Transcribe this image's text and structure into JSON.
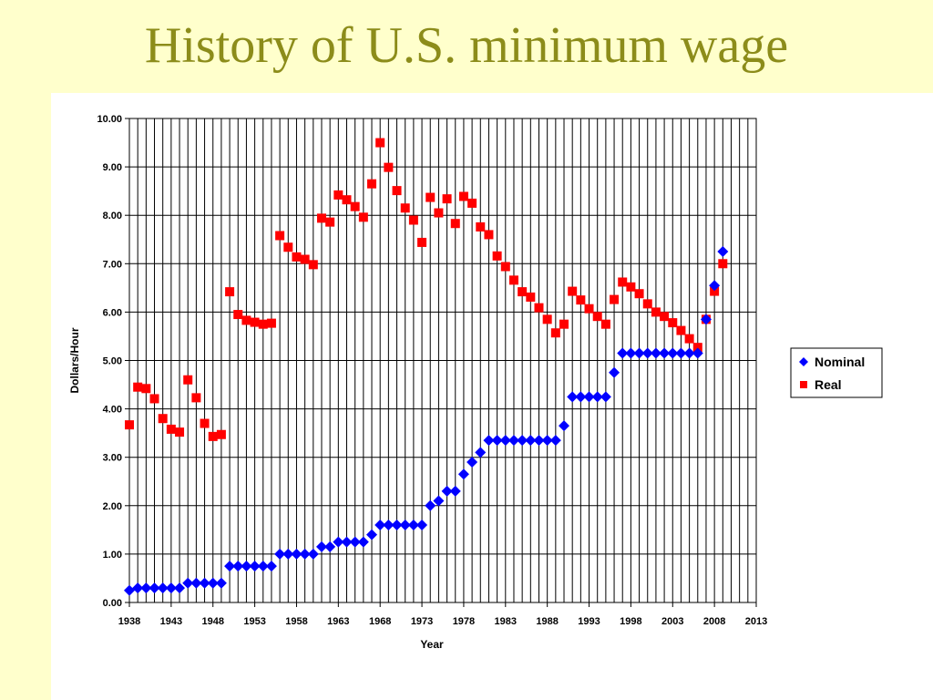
{
  "slide": {
    "title": "History of U.S. minimum wage"
  },
  "colors": {
    "background": "#ffffcc",
    "title": "#8c8c1a",
    "nominal": "#0000ff",
    "real": "#ff0000",
    "grid": "#000000"
  },
  "chart_data": {
    "type": "scatter",
    "title": "",
    "xlabel": "Year",
    "ylabel": "Dollars/Hour",
    "xlim": [
      1938,
      2013
    ],
    "ylim": [
      0,
      10
    ],
    "x_ticks": [
      "1938",
      "1943",
      "1948",
      "1953",
      "1958",
      "1963",
      "1968",
      "1973",
      "1978",
      "1983",
      "1988",
      "1993",
      "1998",
      "2003",
      "2008",
      "2013"
    ],
    "y_ticks": [
      "0.00",
      "1.00",
      "2.00",
      "3.00",
      "4.00",
      "5.00",
      "6.00",
      "7.00",
      "8.00",
      "9.00",
      "10.00"
    ],
    "grid": true,
    "legend": "right",
    "series": [
      {
        "name": "Nominal",
        "marker": "diamond",
        "color": "#0000ff",
        "points": [
          [
            1938,
            0.25
          ],
          [
            1939,
            0.3
          ],
          [
            1940,
            0.3
          ],
          [
            1941,
            0.3
          ],
          [
            1942,
            0.3
          ],
          [
            1943,
            0.3
          ],
          [
            1944,
            0.3
          ],
          [
            1945,
            0.4
          ],
          [
            1946,
            0.4
          ],
          [
            1947,
            0.4
          ],
          [
            1948,
            0.4
          ],
          [
            1949,
            0.4
          ],
          [
            1950,
            0.75
          ],
          [
            1951,
            0.75
          ],
          [
            1952,
            0.75
          ],
          [
            1953,
            0.75
          ],
          [
            1954,
            0.75
          ],
          [
            1955,
            0.75
          ],
          [
            1956,
            1.0
          ],
          [
            1957,
            1.0
          ],
          [
            1958,
            1.0
          ],
          [
            1959,
            1.0
          ],
          [
            1960,
            1.0
          ],
          [
            1961,
            1.15
          ],
          [
            1962,
            1.15
          ],
          [
            1963,
            1.25
          ],
          [
            1964,
            1.25
          ],
          [
            1965,
            1.25
          ],
          [
            1966,
            1.25
          ],
          [
            1967,
            1.4
          ],
          [
            1968,
            1.6
          ],
          [
            1969,
            1.6
          ],
          [
            1970,
            1.6
          ],
          [
            1971,
            1.6
          ],
          [
            1972,
            1.6
          ],
          [
            1973,
            1.6
          ],
          [
            1974,
            2.0
          ],
          [
            1975,
            2.1
          ],
          [
            1976,
            2.3
          ],
          [
            1977,
            2.3
          ],
          [
            1978,
            2.65
          ],
          [
            1979,
            2.9
          ],
          [
            1980,
            3.1
          ],
          [
            1981,
            3.35
          ],
          [
            1982,
            3.35
          ],
          [
            1983,
            3.35
          ],
          [
            1984,
            3.35
          ],
          [
            1985,
            3.35
          ],
          [
            1986,
            3.35
          ],
          [
            1987,
            3.35
          ],
          [
            1988,
            3.35
          ],
          [
            1989,
            3.35
          ],
          [
            1990,
            3.65
          ],
          [
            1991,
            4.25
          ],
          [
            1992,
            4.25
          ],
          [
            1993,
            4.25
          ],
          [
            1994,
            4.25
          ],
          [
            1995,
            4.25
          ],
          [
            1996,
            4.75
          ],
          [
            1997,
            5.15
          ],
          [
            1998,
            5.15
          ],
          [
            1999,
            5.15
          ],
          [
            2000,
            5.15
          ],
          [
            2001,
            5.15
          ],
          [
            2002,
            5.15
          ],
          [
            2003,
            5.15
          ],
          [
            2004,
            5.15
          ],
          [
            2005,
            5.15
          ],
          [
            2006,
            5.15
          ],
          [
            2007,
            5.85
          ],
          [
            2008,
            6.55
          ],
          [
            2009,
            7.25
          ]
        ]
      },
      {
        "name": "Real",
        "marker": "square",
        "color": "#ff0000",
        "points": [
          [
            1938,
            3.67
          ],
          [
            1939,
            4.45
          ],
          [
            1940,
            4.42
          ],
          [
            1941,
            4.21
          ],
          [
            1942,
            3.8
          ],
          [
            1943,
            3.58
          ],
          [
            1944,
            3.52
          ],
          [
            1945,
            4.6
          ],
          [
            1946,
            4.23
          ],
          [
            1947,
            3.7
          ],
          [
            1948,
            3.43
          ],
          [
            1949,
            3.47
          ],
          [
            1950,
            6.42
          ],
          [
            1951,
            5.95
          ],
          [
            1952,
            5.83
          ],
          [
            1953,
            5.79
          ],
          [
            1954,
            5.75
          ],
          [
            1955,
            5.77
          ],
          [
            1956,
            7.58
          ],
          [
            1957,
            7.34
          ],
          [
            1958,
            7.14
          ],
          [
            1959,
            7.09
          ],
          [
            1960,
            6.98
          ],
          [
            1961,
            7.94
          ],
          [
            1962,
            7.86
          ],
          [
            1963,
            8.42
          ],
          [
            1964,
            8.32
          ],
          [
            1965,
            8.18
          ],
          [
            1966,
            7.96
          ],
          [
            1967,
            8.65
          ],
          [
            1968,
            9.5
          ],
          [
            1969,
            8.99
          ],
          [
            1970,
            8.51
          ],
          [
            1971,
            8.15
          ],
          [
            1972,
            7.9
          ],
          [
            1973,
            7.44
          ],
          [
            1974,
            8.37
          ],
          [
            1975,
            8.05
          ],
          [
            1976,
            8.34
          ],
          [
            1977,
            7.83
          ],
          [
            1978,
            8.39
          ],
          [
            1979,
            8.25
          ],
          [
            1980,
            7.76
          ],
          [
            1981,
            7.6
          ],
          [
            1982,
            7.16
          ],
          [
            1983,
            6.94
          ],
          [
            1984,
            6.66
          ],
          [
            1985,
            6.42
          ],
          [
            1986,
            6.31
          ],
          [
            1987,
            6.09
          ],
          [
            1988,
            5.85
          ],
          [
            1989,
            5.57
          ],
          [
            1990,
            5.75
          ],
          [
            1991,
            6.43
          ],
          [
            1992,
            6.25
          ],
          [
            1993,
            6.07
          ],
          [
            1994,
            5.91
          ],
          [
            1995,
            5.75
          ],
          [
            1996,
            6.26
          ],
          [
            1997,
            6.62
          ],
          [
            1998,
            6.52
          ],
          [
            1999,
            6.38
          ],
          [
            2000,
            6.17
          ],
          [
            2001,
            6.0
          ],
          [
            2002,
            5.91
          ],
          [
            2003,
            5.78
          ],
          [
            2004,
            5.62
          ],
          [
            2005,
            5.45
          ],
          [
            2006,
            5.27
          ],
          [
            2007,
            5.85
          ],
          [
            2008,
            6.43
          ],
          [
            2009,
            7.0
          ]
        ]
      }
    ]
  }
}
